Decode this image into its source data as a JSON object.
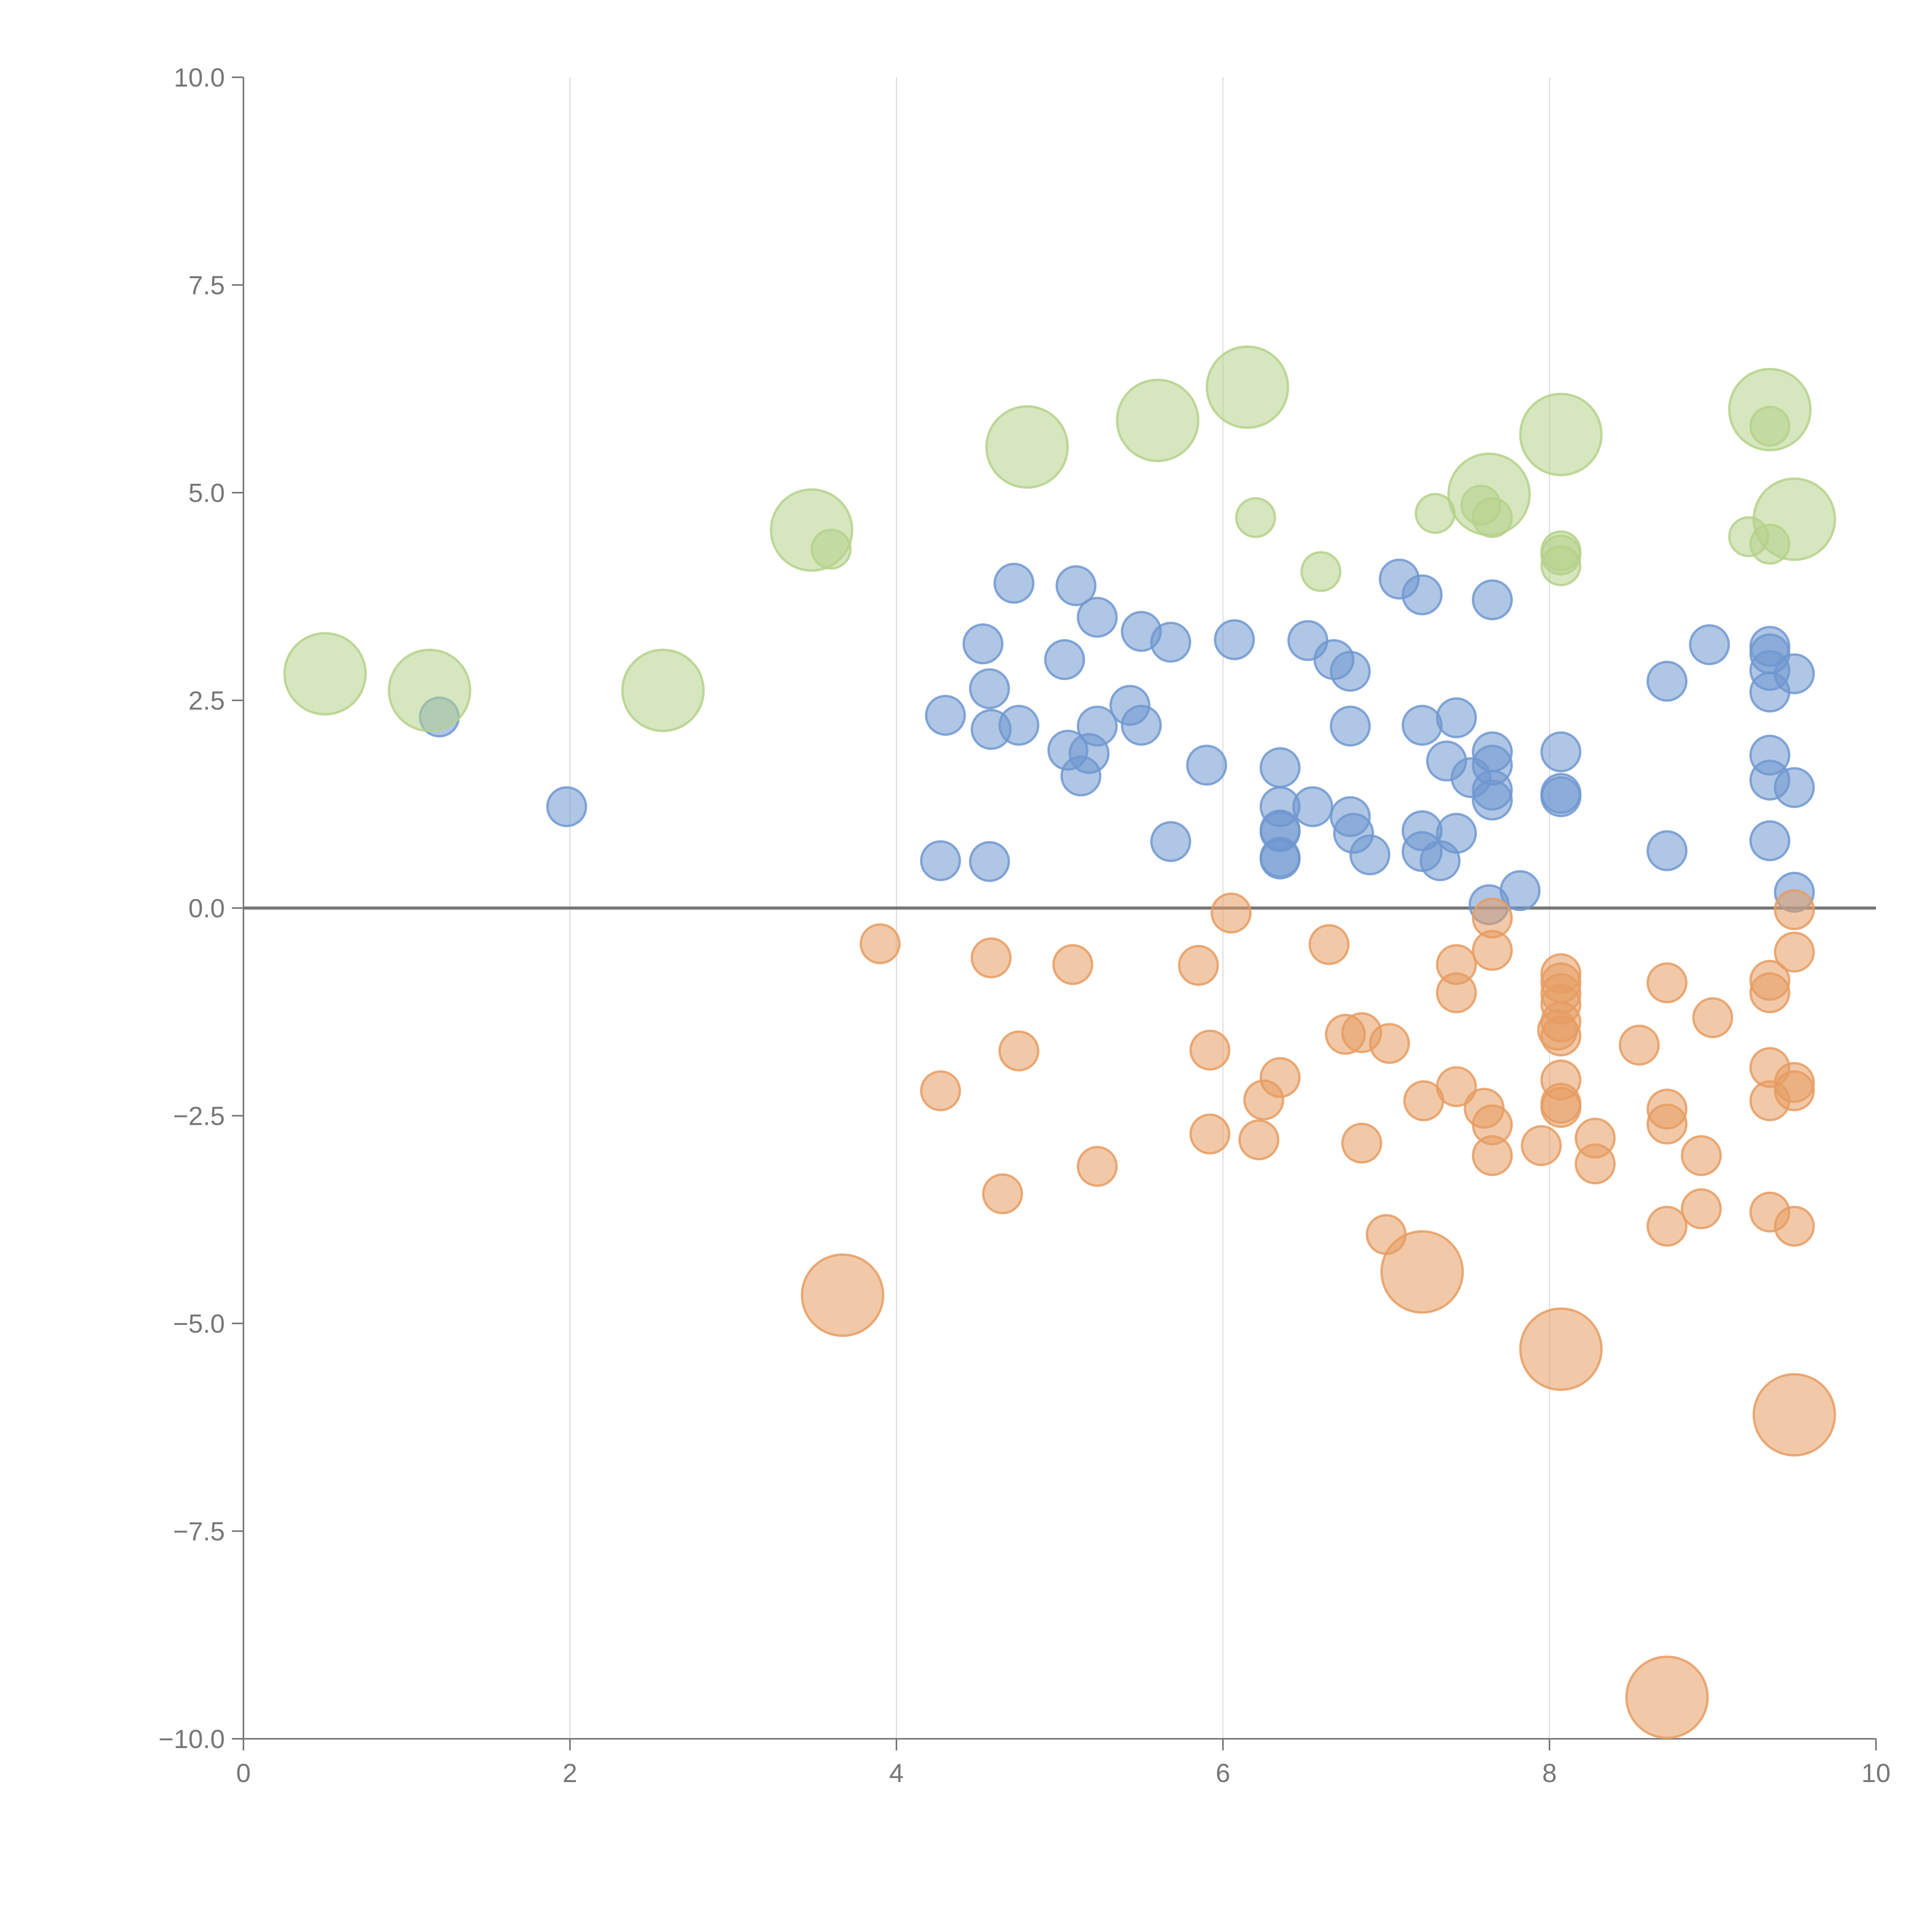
{
  "chart_data": {
    "type": "scatter",
    "title": "",
    "xlabel": "",
    "ylabel": "",
    "xlim": [
      0,
      10
    ],
    "ylim": [
      -10,
      10
    ],
    "grid": "vertical-only",
    "x_ticks": [
      0,
      2,
      4,
      6,
      8,
      10
    ],
    "x_tick_labels": [
      "0",
      "2",
      "4",
      "6",
      "8",
      "10"
    ],
    "y_ticks": [
      10,
      7.5,
      5,
      2.5,
      0,
      -2.5,
      -5,
      -7.5,
      -10
    ],
    "y_tick_labels": [
      "10.0",
      "7.5",
      "5.0",
      "2.5",
      "0.0",
      "−2.5",
      "−5.0",
      "−7.5",
      "−10.0"
    ],
    "reference_line": {
      "axis": "y",
      "value": 0
    },
    "colors": {
      "blue": "#7098d0",
      "orange": "#e69c62",
      "green": "#b5d18a"
    },
    "series": [
      {
        "name": "blue",
        "color": "#7098d0",
        "marker_size": "small",
        "points": [
          [
            1.2,
            2.3
          ],
          [
            1.98,
            1.22
          ],
          [
            4.27,
            0.57
          ],
          [
            4.3,
            2.32
          ],
          [
            4.53,
            3.18
          ],
          [
            4.57,
            2.64
          ],
          [
            4.58,
            2.15
          ],
          [
            4.57,
            0.56
          ],
          [
            4.72,
            3.91
          ],
          [
            4.75,
            2.2
          ],
          [
            5.03,
            2.99
          ],
          [
            5.05,
            1.9
          ],
          [
            5.13,
            1.59
          ],
          [
            5.1,
            3.88
          ],
          [
            5.18,
            1.86
          ],
          [
            5.23,
            2.19
          ],
          [
            5.23,
            3.5
          ],
          [
            5.43,
            2.44
          ],
          [
            5.5,
            3.33
          ],
          [
            5.5,
            2.2
          ],
          [
            5.68,
            3.2
          ],
          [
            5.68,
            0.8
          ],
          [
            5.9,
            1.72
          ],
          [
            6.07,
            3.23
          ],
          [
            6.35,
            1.69
          ],
          [
            6.35,
            1.22
          ],
          [
            6.35,
            0.92
          ],
          [
            6.35,
            0.94
          ],
          [
            6.35,
            0.61
          ],
          [
            6.35,
            0.59
          ],
          [
            6.52,
            3.22
          ],
          [
            6.55,
            1.22
          ],
          [
            6.68,
            2.99
          ],
          [
            6.78,
            2.85
          ],
          [
            6.78,
            2.19
          ],
          [
            6.78,
            1.1
          ],
          [
            6.8,
            0.9
          ],
          [
            6.9,
            0.64
          ],
          [
            7.08,
            3.96
          ],
          [
            7.22,
            3.77
          ],
          [
            7.22,
            2.2
          ],
          [
            7.22,
            0.93
          ],
          [
            7.22,
            0.68
          ],
          [
            7.33,
            0.57
          ],
          [
            7.37,
            1.77
          ],
          [
            7.43,
            2.29
          ],
          [
            7.43,
            0.9
          ],
          [
            7.52,
            1.57
          ],
          [
            7.63,
            0.04
          ],
          [
            7.65,
            3.71
          ],
          [
            7.65,
            1.88
          ],
          [
            7.65,
            1.72
          ],
          [
            7.65,
            1.42
          ],
          [
            7.65,
            1.3
          ],
          [
            7.82,
            0.21
          ],
          [
            8.07,
            1.88
          ],
          [
            8.07,
            1.38
          ],
          [
            8.07,
            1.34
          ],
          [
            8.72,
            2.73
          ],
          [
            8.72,
            0.69
          ],
          [
            8.98,
            3.17
          ],
          [
            9.35,
            3.15
          ],
          [
            9.35,
            3.06
          ],
          [
            9.35,
            2.86
          ],
          [
            9.35,
            2.6
          ],
          [
            9.35,
            1.84
          ],
          [
            9.35,
            1.54
          ],
          [
            9.35,
            0.81
          ],
          [
            9.5,
            2.82
          ],
          [
            9.5,
            1.45
          ],
          [
            9.5,
            0.19
          ]
        ]
      },
      {
        "name": "orange",
        "color": "#e69c62",
        "marker_size": "small",
        "points": [
          [
            3.9,
            -0.43
          ],
          [
            4.27,
            -2.2
          ],
          [
            4.58,
            -0.6
          ],
          [
            4.65,
            -3.44
          ],
          [
            4.75,
            -1.72
          ],
          [
            5.08,
            -0.68
          ],
          [
            5.23,
            -3.11
          ],
          [
            5.85,
            -0.69
          ],
          [
            5.92,
            -1.71
          ],
          [
            5.92,
            -2.72
          ],
          [
            6.05,
            -0.06
          ],
          [
            6.22,
            -2.79
          ],
          [
            6.25,
            -2.31
          ],
          [
            6.35,
            -2.04
          ],
          [
            6.65,
            -0.44
          ],
          [
            6.75,
            -1.52
          ],
          [
            6.85,
            -1.5
          ],
          [
            6.85,
            -2.83
          ],
          [
            7.02,
            -1.63
          ],
          [
            7.0,
            -3.93
          ],
          [
            7.23,
            -2.32
          ],
          [
            7.43,
            -0.68
          ],
          [
            7.43,
            -1.02
          ],
          [
            7.43,
            -2.15
          ],
          [
            7.6,
            -2.41
          ],
          [
            7.65,
            -0.12
          ],
          [
            7.65,
            -0.51
          ],
          [
            7.65,
            -2.61
          ],
          [
            7.65,
            -2.98
          ],
          [
            7.95,
            -2.86
          ],
          [
            8.07,
            -0.79
          ],
          [
            8.07,
            -0.9
          ],
          [
            8.07,
            -1.03
          ],
          [
            8.07,
            -1.16
          ],
          [
            8.07,
            -1.37
          ],
          [
            8.05,
            -1.47
          ],
          [
            8.07,
            -1.54
          ],
          [
            8.07,
            -2.07
          ],
          [
            8.07,
            -2.35
          ],
          [
            8.07,
            -2.4
          ],
          [
            8.28,
            -2.77
          ],
          [
            8.28,
            -3.08
          ],
          [
            8.55,
            -1.65
          ],
          [
            8.72,
            -0.9
          ],
          [
            8.72,
            -2.42
          ],
          [
            8.72,
            -2.6
          ],
          [
            8.72,
            -3.83
          ],
          [
            8.93,
            -2.98
          ],
          [
            8.93,
            -3.62
          ],
          [
            9.0,
            -1.32
          ],
          [
            9.35,
            -0.87
          ],
          [
            9.35,
            -1.02
          ],
          [
            9.35,
            -1.92
          ],
          [
            9.35,
            -2.32
          ],
          [
            9.35,
            -3.66
          ],
          [
            9.5,
            -0.02
          ],
          [
            9.5,
            -0.53
          ],
          [
            9.5,
            -2.1
          ],
          [
            9.5,
            -2.2
          ],
          [
            9.5,
            -3.83
          ]
        ]
      },
      {
        "name": "orange-large",
        "color": "#e69c62",
        "marker_size": "large",
        "points": [
          [
            3.67,
            -4.66
          ],
          [
            7.22,
            -4.38
          ],
          [
            8.07,
            -5.31
          ],
          [
            9.5,
            -6.1
          ],
          [
            8.72,
            -9.5
          ]
        ]
      },
      {
        "name": "green",
        "color": "#b5d18a",
        "marker_size": "small",
        "points": [
          [
            3.6,
            4.32
          ],
          [
            6.2,
            4.7
          ],
          [
            6.6,
            4.05
          ],
          [
            7.3,
            4.75
          ],
          [
            7.58,
            4.85
          ],
          [
            7.65,
            4.7
          ],
          [
            8.07,
            4.3
          ],
          [
            8.07,
            4.25
          ],
          [
            8.07,
            4.12
          ],
          [
            9.22,
            4.47
          ],
          [
            9.35,
            4.38
          ],
          [
            9.35,
            5.8
          ]
        ]
      },
      {
        "name": "green-large",
        "color": "#b5d18a",
        "marker_size": "large",
        "points": [
          [
            0.5,
            2.82
          ],
          [
            1.14,
            2.62
          ],
          [
            2.57,
            2.62
          ],
          [
            3.48,
            4.55
          ],
          [
            4.8,
            5.55
          ],
          [
            5.6,
            5.87
          ],
          [
            6.15,
            6.27
          ],
          [
            7.63,
            4.98
          ],
          [
            8.07,
            5.7
          ],
          [
            9.35,
            6.0
          ],
          [
            9.5,
            4.68
          ]
        ]
      }
    ]
  }
}
